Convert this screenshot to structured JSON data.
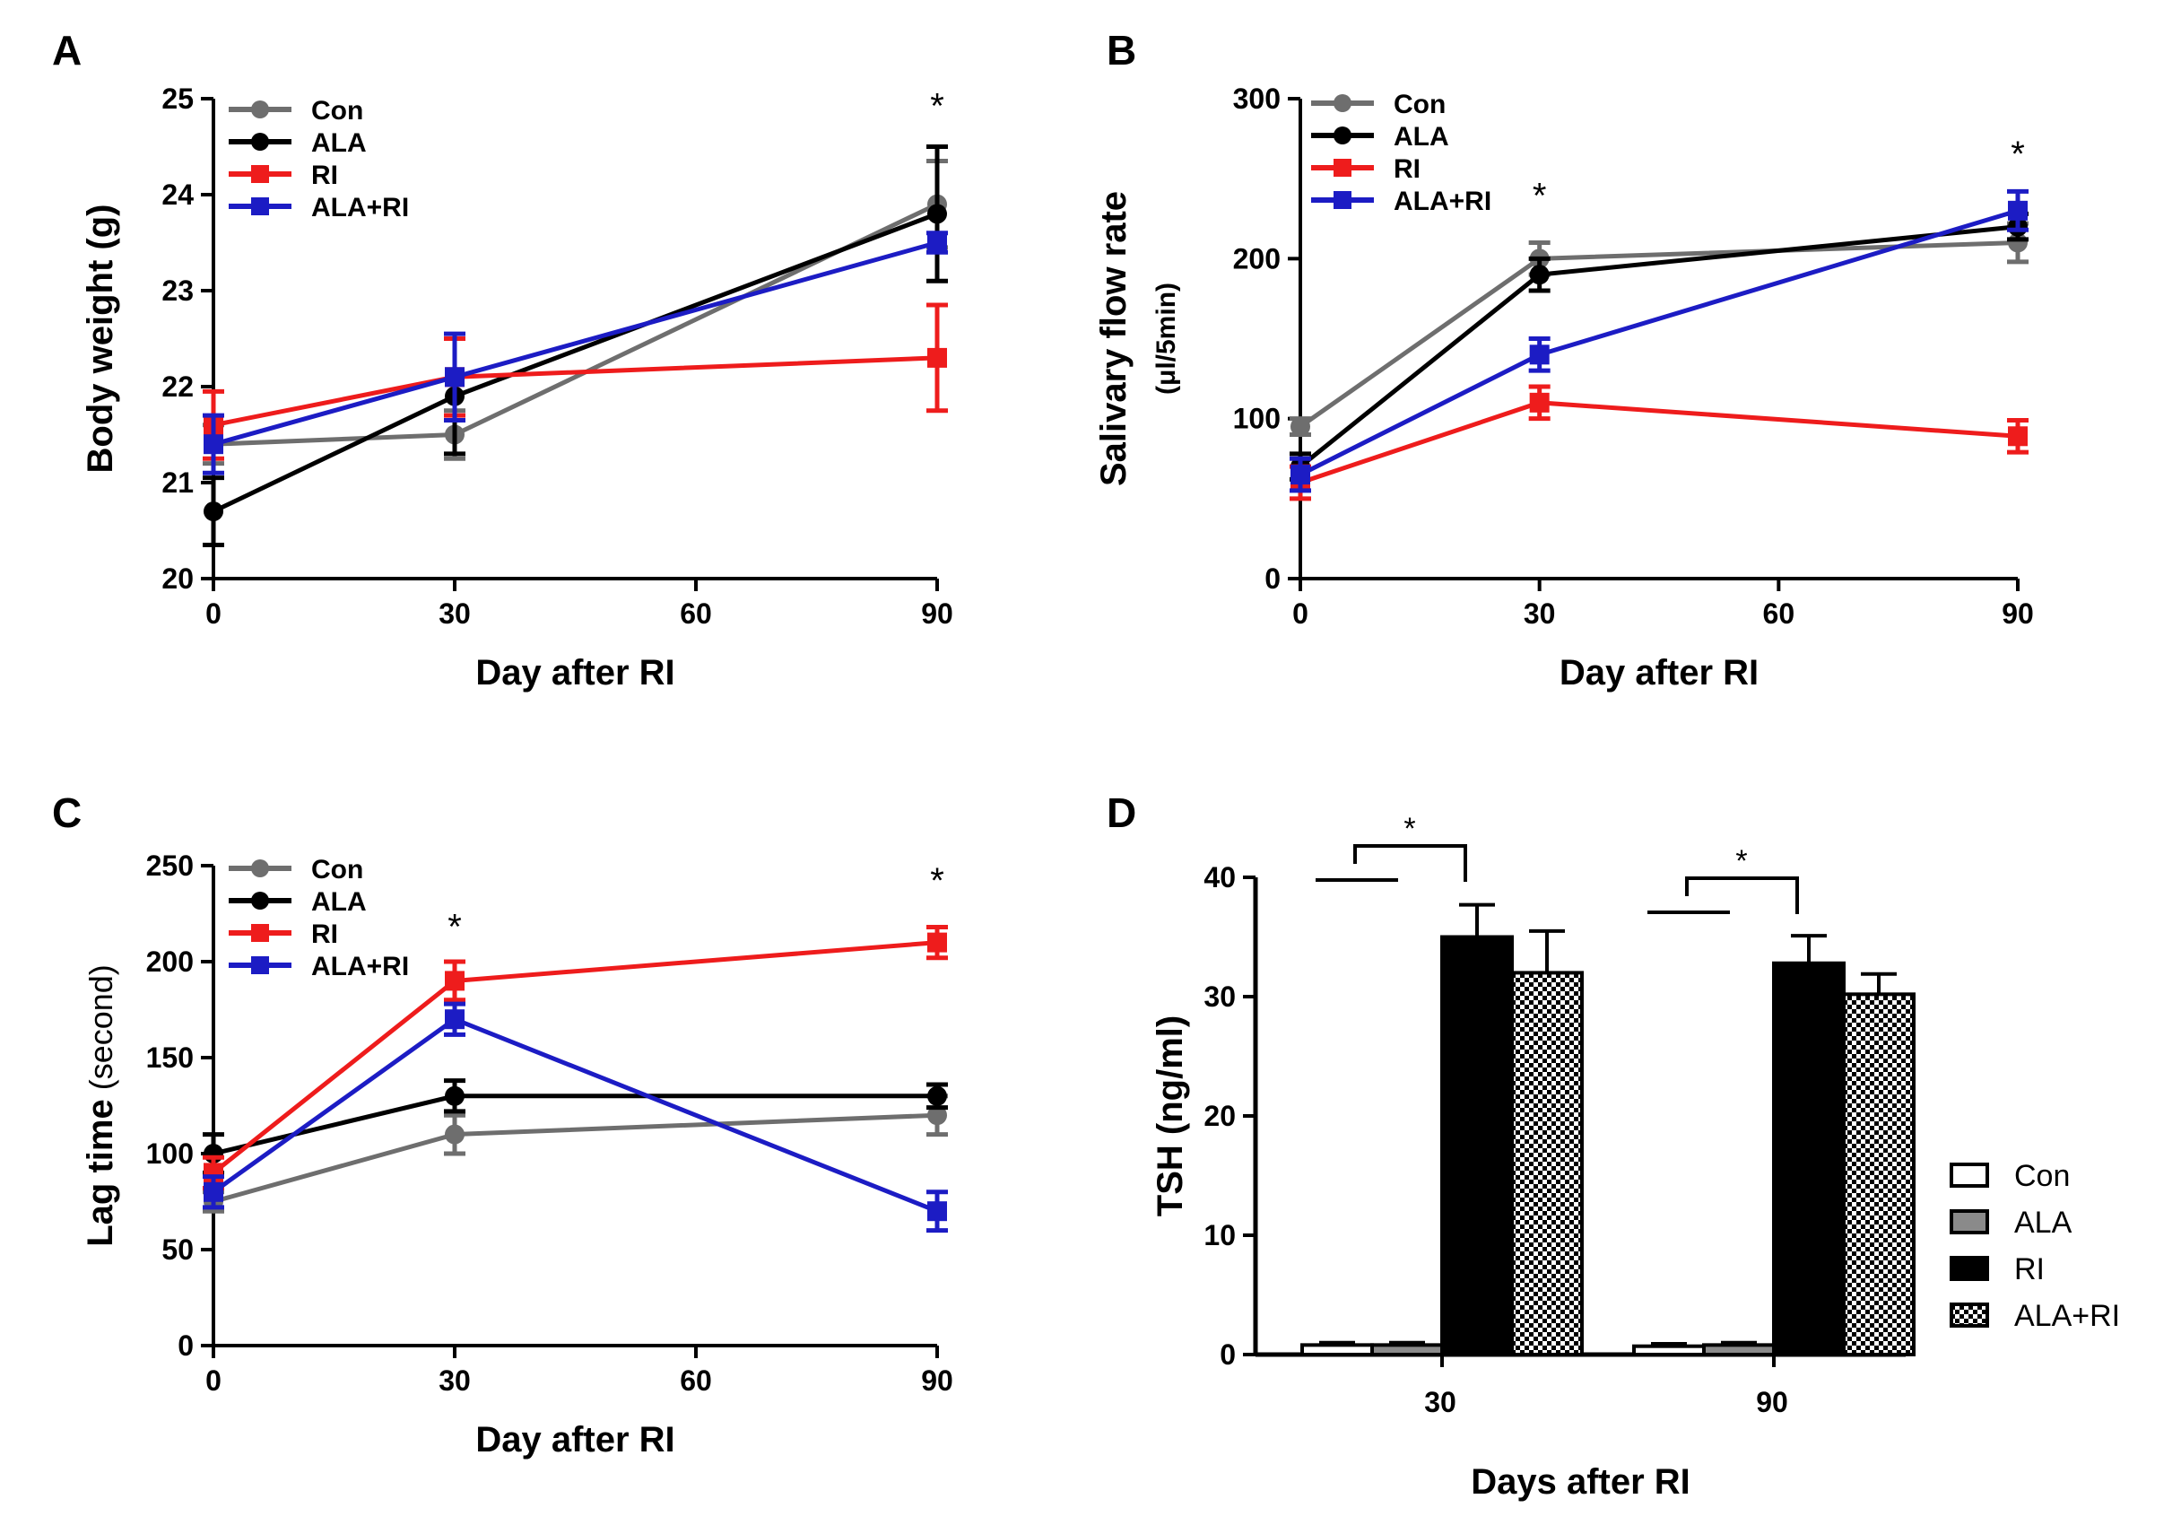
{
  "chart_data": [
    {
      "panel": "A",
      "type": "line",
      "xlabel": "Day after RI",
      "ylabel": "Body weight (g)",
      "ylabel_unit": "",
      "x": [
        0,
        30,
        90
      ],
      "xticks": [
        "0",
        "30",
        "60",
        "90"
      ],
      "xtick_values": [
        0,
        30,
        60,
        90
      ],
      "xlim": [
        0,
        90
      ],
      "yticks": [
        "20",
        "21",
        "22",
        "23",
        "24",
        "25"
      ],
      "ytick_values": [
        20,
        21,
        22,
        23,
        24,
        25
      ],
      "ylim": [
        20,
        25
      ],
      "legend": "top-left",
      "series": [
        {
          "name": "Con",
          "color": "#6e6e6e",
          "marker": "circle",
          "values": [
            21.4,
            21.5,
            23.9
          ],
          "errors": [
            0.2,
            0.25,
            0.45
          ]
        },
        {
          "name": "ALA",
          "color": "#000000",
          "marker": "circle",
          "values": [
            20.7,
            21.9,
            23.8
          ],
          "errors": [
            0.35,
            0.6,
            0.7
          ]
        },
        {
          "name": "RI",
          "color": "#ee1c1c",
          "marker": "square",
          "values": [
            21.6,
            22.1,
            22.3
          ],
          "errors": [
            0.35,
            0.4,
            0.55
          ]
        },
        {
          "name": "ALA+RI",
          "color": "#1c1cc4",
          "marker": "square",
          "values": [
            21.4,
            22.1,
            23.5
          ],
          "errors": [
            0.3,
            0.45,
            0.1
          ]
        }
      ],
      "stars": [
        {
          "x": 90,
          "y": 24.8,
          "label": "*"
        }
      ]
    },
    {
      "panel": "B",
      "type": "line",
      "xlabel": "Day after RI",
      "ylabel": "Salivary flow rate",
      "ylabel_unit": "(μl/5min)",
      "x": [
        0,
        30,
        90
      ],
      "xticks": [
        "0",
        "30",
        "60",
        "90"
      ],
      "xtick_values": [
        0,
        30,
        60,
        90
      ],
      "xlim": [
        0,
        90
      ],
      "yticks": [
        "0",
        "100",
        "200",
        "300"
      ],
      "ytick_values": [
        0,
        100,
        200,
        300
      ],
      "ylim": [
        0,
        300
      ],
      "legend": "top-left",
      "series": [
        {
          "name": "Con",
          "color": "#6e6e6e",
          "marker": "circle",
          "values": [
            95,
            200,
            210
          ],
          "errors": [
            5,
            10,
            12
          ]
        },
        {
          "name": "ALA",
          "color": "#000000",
          "marker": "circle",
          "values": [
            70,
            190,
            220
          ],
          "errors": [
            8,
            10,
            8
          ]
        },
        {
          "name": "RI",
          "color": "#ee1c1c",
          "marker": "square",
          "values": [
            60,
            110,
            89
          ],
          "errors": [
            10,
            10,
            10
          ]
        },
        {
          "name": "ALA+RI",
          "color": "#1c1cc4",
          "marker": "square",
          "values": [
            65,
            140,
            230
          ],
          "errors": [
            10,
            10,
            12
          ]
        }
      ],
      "stars": [
        {
          "x": 30,
          "y": 232,
          "label": "*"
        },
        {
          "x": 90,
          "y": 258,
          "label": "*"
        }
      ]
    },
    {
      "panel": "C",
      "type": "line",
      "xlabel": "Day after RI",
      "ylabel": "Lag time",
      "ylabel_unit": "(second)",
      "x": [
        0,
        30,
        90
      ],
      "xticks": [
        "0",
        "30",
        "60",
        "90"
      ],
      "xtick_values": [
        0,
        30,
        60,
        90
      ],
      "xlim": [
        0,
        90
      ],
      "yticks": [
        "0",
        "50",
        "100",
        "150",
        "200",
        "250"
      ],
      "ytick_values": [
        0,
        50,
        100,
        150,
        200,
        250
      ],
      "ylim": [
        0,
        250
      ],
      "legend": "top-left",
      "series": [
        {
          "name": "Con",
          "color": "#6e6e6e",
          "marker": "circle",
          "values": [
            75,
            110,
            120
          ],
          "errors": [
            5,
            10,
            10
          ]
        },
        {
          "name": "ALA",
          "color": "#000000",
          "marker": "circle",
          "values": [
            100,
            130,
            130
          ],
          "errors": [
            10,
            8,
            6
          ]
        },
        {
          "name": "RI",
          "color": "#ee1c1c",
          "marker": "square",
          "values": [
            90,
            190,
            210
          ],
          "errors": [
            8,
            10,
            8
          ]
        },
        {
          "name": "ALA+RI",
          "color": "#1c1cc4",
          "marker": "square",
          "values": [
            80,
            170,
            70
          ],
          "errors": [
            8,
            8,
            10
          ]
        }
      ],
      "stars": [
        {
          "x": 30,
          "y": 212,
          "label": "*"
        },
        {
          "x": 90,
          "y": 236,
          "label": "*"
        }
      ]
    },
    {
      "panel": "D",
      "type": "bar",
      "xlabel": "Days after RI",
      "ylabel": "TSH (ng/ml)",
      "categories": [
        "30",
        "90"
      ],
      "yticks": [
        "0",
        "10",
        "20",
        "30",
        "40"
      ],
      "ytick_values": [
        0,
        10,
        20,
        30,
        40
      ],
      "ylim": [
        0,
        40
      ],
      "legend": "right",
      "series": [
        {
          "name": "Con",
          "fill": "open",
          "values": [
            0.8,
            0.7
          ],
          "errors": [
            0.2,
            0.2
          ]
        },
        {
          "name": "ALA",
          "fill": "gray",
          "values": [
            0.8,
            0.8
          ],
          "errors": [
            0.2,
            0.2
          ]
        },
        {
          "name": "RI",
          "fill": "black",
          "values": [
            35,
            32.8
          ],
          "errors": [
            2.7,
            2.3
          ]
        },
        {
          "name": "ALA+RI",
          "fill": "checker",
          "values": [
            32,
            30.2
          ],
          "errors": [
            3.5,
            1.7
          ]
        }
      ],
      "stars": [
        "*",
        "*"
      ]
    }
  ]
}
